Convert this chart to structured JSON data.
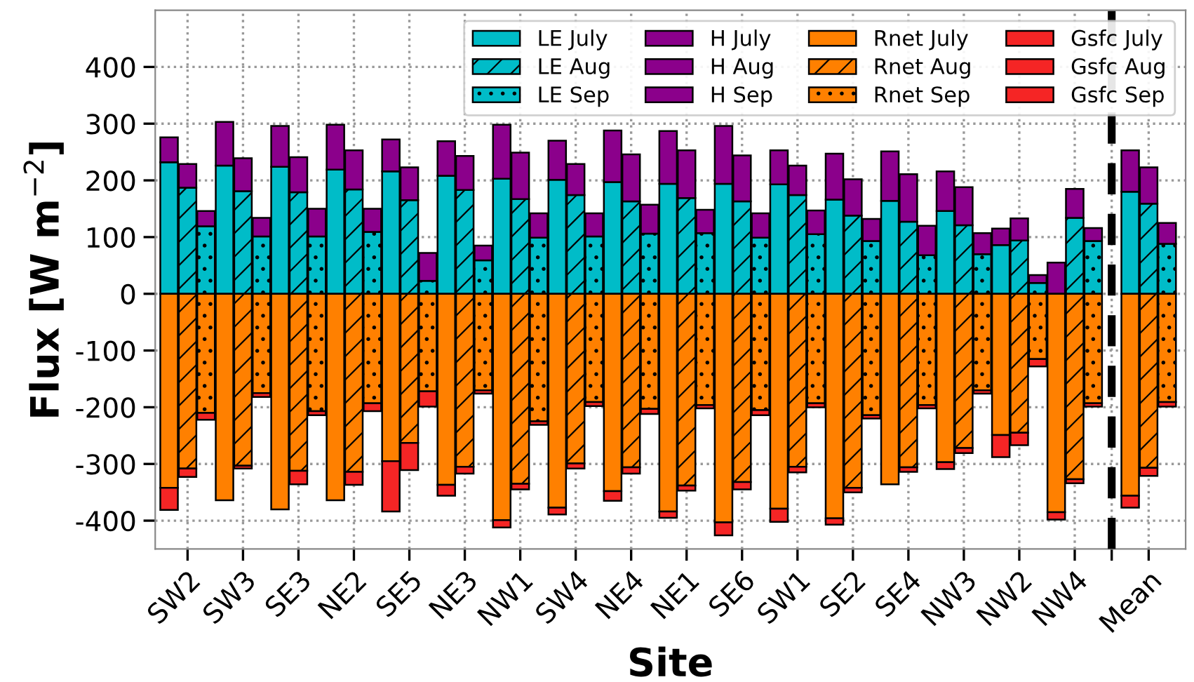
{
  "chart_data": {
    "type": "bar",
    "stacked": true,
    "xlabel": "Site",
    "ylabel": "Flux [W m$^{−2}$]",
    "categories": [
      null,
      "SW2",
      null,
      null,
      "SW3",
      null,
      null,
      "SE3",
      null,
      null,
      "NE2",
      null,
      null,
      "SE5",
      null,
      null,
      "NE3",
      null,
      null,
      "NW1",
      null,
      null,
      "SW4",
      null,
      null,
      "NE4",
      null,
      null,
      "NE1",
      null,
      null,
      "SE6",
      null,
      null,
      "SW1",
      null,
      null,
      "SE2",
      null,
      null,
      "SE4",
      null,
      null,
      "NW3",
      null,
      null,
      "NW2",
      null,
      null,
      "NW4",
      null,
      null,
      null,
      "Mean",
      null
    ],
    "ylim": [
      -450,
      500
    ],
    "yticks": [
      -400,
      -300,
      -200,
      -100,
      0,
      100,
      200,
      300,
      400
    ],
    "grid": true,
    "legend": "top right",
    "ref_lines": [
      {
        "axis": "x",
        "color": "#000000",
        "line_style": "dashed"
      }
    ],
    "series": [
      {
        "name": "LE July",
        "color": "#00bcc8",
        "line_style": "solid",
        "values": [
          232,
          null,
          null,
          226,
          null,
          null,
          224,
          null,
          null,
          219,
          null,
          null,
          216,
          null,
          null,
          208,
          null,
          null,
          203,
          null,
          null,
          201,
          null,
          null,
          197,
          null,
          null,
          194,
          null,
          null,
          194,
          null,
          null,
          193,
          null,
          null,
          166,
          null,
          null,
          164,
          null,
          null,
          146,
          null,
          null,
          86,
          null,
          null,
          0,
          null,
          null,
          null,
          180,
          null,
          null
        ]
      },
      {
        "name": "LE Aug",
        "color": "#00bcc8",
        "line_style": "dashed",
        "values": [
          null,
          187,
          null,
          null,
          181,
          null,
          null,
          179,
          null,
          null,
          184,
          null,
          null,
          165,
          null,
          null,
          183,
          null,
          null,
          167,
          null,
          null,
          174,
          null,
          null,
          163,
          null,
          null,
          169,
          null,
          null,
          163,
          null,
          null,
          174,
          null,
          null,
          138,
          null,
          null,
          127,
          null,
          null,
          121,
          null,
          null,
          94,
          null,
          null,
          134,
          null,
          null,
          null,
          159,
          null
        ]
      },
      {
        "name": "LE Sep",
        "color": "#00bcc8",
        "line_style": "dotted",
        "values": [
          null,
          null,
          119,
          null,
          null,
          101,
          null,
          null,
          101,
          null,
          null,
          109,
          null,
          null,
          23,
          null,
          null,
          59,
          null,
          null,
          99,
          null,
          null,
          101,
          null,
          null,
          106,
          null,
          null,
          107,
          null,
          null,
          99,
          null,
          null,
          105,
          null,
          null,
          93,
          null,
          null,
          68,
          null,
          null,
          70,
          null,
          null,
          19,
          null,
          null,
          93,
          null,
          null,
          null,
          88
        ]
      },
      {
        "name": "H July",
        "color": "#8b008b",
        "line_style": "solid",
        "values": [
          44,
          null,
          null,
          77,
          null,
          null,
          72,
          null,
          null,
          79,
          null,
          null,
          56,
          null,
          null,
          61,
          null,
          null,
          95,
          null,
          null,
          69,
          null,
          null,
          91,
          null,
          null,
          93,
          null,
          null,
          102,
          null,
          null,
          60,
          null,
          null,
          81,
          null,
          null,
          87,
          null,
          null,
          70,
          null,
          null,
          29,
          null,
          null,
          55,
          null,
          null,
          null,
          73,
          null,
          null
        ]
      },
      {
        "name": "H Aug",
        "color": "#8b008b",
        "line_style": "solid",
        "values": [
          null,
          42,
          null,
          null,
          58,
          null,
          null,
          62,
          null,
          null,
          69,
          null,
          null,
          58,
          null,
          null,
          60,
          null,
          null,
          82,
          null,
          null,
          55,
          null,
          null,
          83,
          null,
          null,
          84,
          null,
          null,
          81,
          null,
          null,
          52,
          null,
          null,
          64,
          null,
          null,
          84,
          null,
          null,
          67,
          null,
          null,
          39,
          null,
          null,
          51,
          null,
          null,
          null,
          64,
          null
        ]
      },
      {
        "name": "H Sep",
        "color": "#8b008b",
        "line_style": "solid",
        "values": [
          null,
          null,
          27,
          null,
          null,
          33,
          null,
          null,
          49,
          null,
          null,
          41,
          null,
          null,
          49,
          null,
          null,
          26,
          null,
          null,
          43,
          null,
          null,
          41,
          null,
          null,
          51,
          null,
          null,
          41,
          null,
          null,
          43,
          null,
          null,
          42,
          null,
          null,
          39,
          null,
          null,
          52,
          null,
          null,
          37,
          null,
          null,
          14,
          null,
          null,
          23,
          null,
          null,
          null,
          37
        ]
      },
      {
        "name": "Rnet July",
        "color": "#ff8000",
        "line_style": "solid",
        "values": [
          -342,
          null,
          null,
          -364,
          null,
          null,
          -380,
          null,
          null,
          -364,
          null,
          null,
          -295,
          null,
          null,
          -337,
          null,
          null,
          -399,
          null,
          null,
          -377,
          null,
          null,
          -348,
          null,
          null,
          -384,
          null,
          null,
          -403,
          null,
          null,
          -379,
          null,
          null,
          -396,
          null,
          null,
          -336,
          null,
          null,
          -297,
          null,
          null,
          -249,
          null,
          null,
          -385,
          null,
          null,
          null,
          -356,
          null,
          null
        ]
      },
      {
        "name": "Rnet Aug",
        "color": "#ff8000",
        "line_style": "dashed",
        "values": [
          null,
          -308,
          null,
          null,
          -303,
          null,
          null,
          -312,
          null,
          null,
          -314,
          null,
          null,
          -263,
          null,
          null,
          -305,
          null,
          null,
          -335,
          null,
          null,
          -299,
          null,
          null,
          -306,
          null,
          null,
          -338,
          null,
          null,
          -332,
          null,
          null,
          -305,
          null,
          null,
          -342,
          null,
          null,
          -306,
          null,
          null,
          -272,
          null,
          null,
          -245,
          null,
          null,
          -327,
          null,
          null,
          null,
          -307,
          null
        ]
      },
      {
        "name": "Rnet Sep",
        "color": "#ff8000",
        "line_style": "dotted",
        "values": [
          null,
          null,
          -210,
          null,
          null,
          -175,
          null,
          null,
          -207,
          null,
          null,
          -193,
          null,
          null,
          -172,
          null,
          null,
          -170,
          null,
          null,
          -225,
          null,
          null,
          -191,
          null,
          null,
          -203,
          null,
          null,
          -196,
          null,
          null,
          -205,
          null,
          null,
          -193,
          null,
          null,
          -214,
          null,
          null,
          -196,
          null,
          null,
          -170,
          null,
          null,
          -115,
          null,
          null,
          -193,
          null,
          null,
          null,
          -191
        ]
      },
      {
        "name": "Gsfc July",
        "color": "#f52525",
        "line_style": "solid",
        "values": [
          -39,
          null,
          null,
          0,
          null,
          null,
          0,
          null,
          null,
          0,
          null,
          null,
          -89,
          null,
          null,
          -19,
          null,
          null,
          -13,
          null,
          null,
          -12,
          null,
          null,
          -17,
          null,
          null,
          -11,
          null,
          null,
          -23,
          null,
          null,
          -23,
          null,
          null,
          -11,
          null,
          null,
          0,
          null,
          null,
          -12,
          null,
          null,
          -39,
          null,
          null,
          -13,
          null,
          null,
          null,
          -21,
          null,
          null
        ]
      },
      {
        "name": "Gsfc Aug",
        "color": "#f52525",
        "line_style": "solid",
        "values": [
          null,
          -15,
          null,
          null,
          -5,
          null,
          null,
          -24,
          null,
          null,
          -23,
          null,
          null,
          -48,
          null,
          null,
          -12,
          null,
          null,
          -10,
          null,
          null,
          -9,
          null,
          null,
          -11,
          null,
          null,
          -9,
          null,
          null,
          -13,
          null,
          null,
          -10,
          null,
          null,
          -8,
          null,
          null,
          -8,
          null,
          null,
          -9,
          null,
          null,
          -22,
          null,
          null,
          -7,
          null,
          null,
          null,
          -14,
          null
        ]
      },
      {
        "name": "Gsfc Sep",
        "color": "#f52525",
        "line_style": "solid",
        "values": [
          null,
          null,
          -12,
          null,
          null,
          -7,
          null,
          null,
          -7,
          null,
          null,
          -14,
          null,
          null,
          -27,
          null,
          null,
          -6,
          null,
          null,
          -6,
          null,
          null,
          -7,
          null,
          null,
          -9,
          null,
          null,
          -6,
          null,
          null,
          -9,
          null,
          null,
          -7,
          null,
          null,
          -6,
          null,
          null,
          -6,
          null,
          null,
          -6,
          null,
          null,
          -13,
          null,
          null,
          -6,
          null,
          null,
          null,
          -8
        ]
      }
    ]
  }
}
